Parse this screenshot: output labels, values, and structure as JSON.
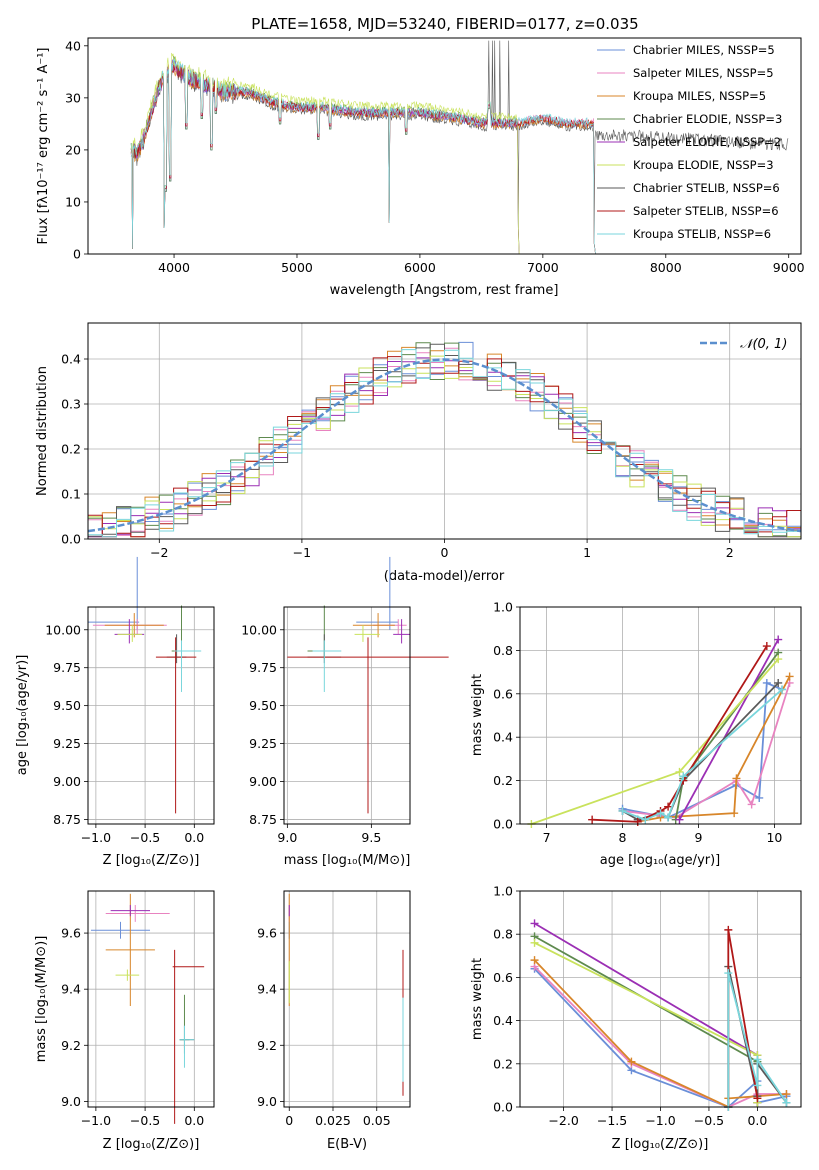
{
  "colors": [
    "#6a8fd8",
    "#e883c0",
    "#d8862a",
    "#5e8a4e",
    "#9b2fb4",
    "#c9e25c",
    "#5a5a5a",
    "#b01818",
    "#79d6dc"
  ],
  "spectrum_panel": {
    "title": "PLATE=1658, MJD=53240, FIBERID=0177, z=0.035",
    "xlabel": "wavelength [Angstrom, rest frame]",
    "ylabel": "Flux [fλ10⁻¹⁷ erg cm⁻² s⁻¹ A⁻¹]",
    "legend": [
      "Chabrier MILES, NSSP=5",
      "Salpeter MILES, NSSP=5",
      "Kroupa MILES, NSSP=5",
      "Chabrier ELODIE, NSSP=3",
      "Salpeter ELODIE, NSSP=2",
      "Kroupa ELODIE, NSSP=3",
      "Chabrier STELIB, NSSP=6",
      "Salpeter STELIB, NSSP=6",
      "Kroupa STELIB, NSSP=6"
    ]
  },
  "hist_panel": {
    "xlabel": "(data-model)/error",
    "ylabel": "Normed distribution",
    "legend": "𝒩(0, 1)"
  },
  "age_z_panel": {
    "xlabel": "Z [log₁₀(Z/Z⊙)]",
    "ylabel": "age  [log₁₀(age/yr)]"
  },
  "age_mass_panel": {
    "xlabel": "mass [log₁₀(M/M⊙)]"
  },
  "weight_age_panel": {
    "xlabel": "age  [log₁₀(age/yr)]",
    "ylabel": "mass weight"
  },
  "mass_z_panel": {
    "xlabel": "Z [log₁₀(Z/Z⊙)]",
    "ylabel": "mass [log₁₀(M/M⊙)]"
  },
  "mass_ebv_panel": {
    "xlabel": "E(B-V)"
  },
  "weight_z_panel": {
    "xlabel": "Z [log₁₀(Z/Z⊙)]",
    "ylabel": "mass weight"
  },
  "chart_data": [
    {
      "type": "line",
      "id": "spectrum",
      "xlim": [
        3300,
        9100
      ],
      "ylim": [
        0,
        41.5
      ],
      "xticks": [
        4000,
        5000,
        6000,
        7000,
        8000,
        9000
      ],
      "yticks": [
        0,
        10,
        20,
        30,
        40
      ],
      "grid": false,
      "legend_position": "top-right",
      "continuum": [
        [
          3650,
          20
        ],
        [
          3700,
          19
        ],
        [
          3750,
          22
        ],
        [
          3800,
          26
        ],
        [
          3850,
          30
        ],
        [
          3900,
          33
        ],
        [
          3950,
          35
        ],
        [
          4000,
          36
        ],
        [
          4100,
          34
        ],
        [
          4200,
          33
        ],
        [
          4400,
          31
        ],
        [
          4600,
          31
        ],
        [
          4800,
          29
        ],
        [
          5000,
          28
        ],
        [
          5200,
          28
        ],
        [
          5500,
          27
        ],
        [
          5800,
          27
        ],
        [
          6000,
          27
        ],
        [
          6300,
          26
        ],
        [
          6500,
          25
        ],
        [
          6800,
          25
        ],
        [
          7000,
          26
        ],
        [
          7200,
          25
        ],
        [
          7500,
          25
        ]
      ],
      "absorption_lines": [
        [
          3934,
          12
        ],
        [
          3969,
          14
        ],
        [
          4101,
          24
        ],
        [
          4226,
          26
        ],
        [
          4304,
          20
        ],
        [
          4340,
          27
        ],
        [
          4861,
          25
        ],
        [
          5175,
          22
        ],
        [
          5270,
          24
        ],
        [
          5890,
          23
        ],
        [
          6563,
          28
        ]
      ],
      "drop_to_zero": [
        [
          3660,
          1
        ],
        [
          3920,
          5
        ],
        [
          5750,
          6
        ],
        [
          6800,
          5
        ],
        [
          7420,
          2
        ]
      ],
      "spikes": [
        [
          6560,
          41
        ],
        [
          6590,
          41
        ],
        [
          6610,
          41
        ],
        [
          6650,
          41
        ],
        [
          6720,
          41
        ]
      ],
      "series_offsets": [
        0,
        0.3,
        -0.2,
        0.6,
        0.2,
        1.5,
        -0.6,
        0.1,
        0.4
      ],
      "series_xmax": [
        7420,
        7420,
        7420,
        6800,
        6800,
        6800,
        9000,
        7420,
        7420
      ]
    },
    {
      "type": "histogram",
      "id": "residuals",
      "xlim": [
        -2.5,
        2.5
      ],
      "ylim": [
        0,
        0.48
      ],
      "xticks": [
        -2,
        -1,
        0,
        1,
        2
      ],
      "yticks": [
        0.0,
        0.1,
        0.2,
        0.3,
        0.4
      ],
      "grid": true,
      "legend_position": "top-right",
      "bin_width": 0.1,
      "reference_curve": "normal(0,1)"
    },
    {
      "type": "scatter",
      "id": "age_vs_Z",
      "xlim": [
        -1.08,
        0.2
      ],
      "ylim": [
        8.72,
        10.15
      ],
      "xticks": [
        -1.0,
        -0.5,
        0.0
      ],
      "yticks": [
        8.75,
        9.0,
        9.25,
        9.5,
        9.75,
        10.0
      ],
      "points": [
        [
          -0.58,
          10.05,
          0.5,
          0.02,
          0.05,
          0.43
        ],
        [
          -0.58,
          10.03,
          0.45,
          0.3,
          0.06,
          0.04
        ],
        [
          -0.61,
          10.03,
          0.3,
          0.3,
          0.08,
          0.08
        ],
        [
          -0.13,
          9.86,
          0.1,
          0.1,
          0.05,
          0.3
        ],
        [
          -0.66,
          9.97,
          0.15,
          0.15,
          0.06,
          0.1
        ],
        [
          -0.63,
          9.97,
          0.15,
          0.1,
          0.05,
          0.06
        ],
        [
          -0.18,
          9.82,
          0.1,
          0.1,
          0.04,
          0.15
        ],
        [
          -0.19,
          9.82,
          0.2,
          0.21,
          1.03,
          0.13
        ],
        [
          -0.13,
          9.86,
          0.07,
          0.2,
          0.27,
          0.07
        ]
      ]
    },
    {
      "type": "scatter",
      "id": "age_vs_mass",
      "xlim": [
        8.98,
        9.73
      ],
      "ylim": [
        8.72,
        10.15
      ],
      "xticks": [
        9.0,
        9.5
      ],
      "yticks": [
        8.75,
        9.0,
        9.25,
        9.5,
        9.75,
        10.0
      ],
      "points": [
        [
          9.61,
          10.05,
          0.2,
          0.05,
          0.05,
          0.43
        ],
        [
          9.66,
          10.03,
          0.15,
          0.05,
          0.06,
          0.04
        ],
        [
          9.54,
          10.03,
          0.15,
          0.1,
          0.08,
          0.08
        ],
        [
          9.22,
          9.86,
          0.1,
          0.1,
          0.05,
          0.3
        ],
        [
          9.68,
          9.97,
          0.05,
          0.05,
          0.06,
          0.1
        ],
        [
          9.45,
          9.97,
          0.05,
          0.1,
          0.05,
          0.06
        ],
        [
          9.22,
          9.82,
          0.1,
          0.1,
          0.04,
          0.15
        ],
        [
          9.48,
          9.82,
          0.48,
          0.48,
          1.03,
          0.13
        ],
        [
          9.22,
          9.86,
          0.07,
          0.1,
          0.27,
          0.07
        ]
      ]
    },
    {
      "type": "line",
      "id": "weight_vs_age",
      "xlim": [
        6.65,
        10.35
      ],
      "ylim": [
        0.0,
        1.0
      ],
      "xticks": [
        7,
        8,
        9,
        10
      ],
      "yticks": [
        0.0,
        0.2,
        0.4,
        0.6,
        0.8,
        1.0
      ],
      "grid": true,
      "series": [
        {
          "x": [
            8.0,
            8.6,
            9.5,
            9.8,
            9.9,
            10.1
          ],
          "y": [
            0.07,
            0.03,
            0.18,
            0.12,
            0.65,
            0.62
          ]
        },
        {
          "x": [
            8.0,
            8.7,
            9.5,
            9.7,
            10.2
          ],
          "y": [
            0.06,
            0.03,
            0.2,
            0.09,
            0.65
          ]
        },
        {
          "x": [
            8.2,
            8.5,
            9.47,
            9.5,
            10.2
          ],
          "y": [
            0.01,
            0.03,
            0.05,
            0.21,
            0.68
          ]
        },
        {
          "x": [
            8.7,
            8.8,
            10.05
          ],
          "y": [
            0.02,
            0.21,
            0.79
          ]
        },
        {
          "x": [
            8.75,
            10.05
          ],
          "y": [
            0.02,
            0.85
          ]
        },
        {
          "x": [
            6.8,
            8.75,
            10.05
          ],
          "y": [
            0.0,
            0.24,
            0.76
          ]
        },
        {
          "x": [
            8.0,
            8.2,
            8.5,
            8.6,
            8.8,
            10.05
          ],
          "y": [
            0.06,
            0.02,
            0.05,
            0.03,
            0.2,
            0.65
          ]
        },
        {
          "x": [
            7.6,
            8.2,
            8.5,
            8.6,
            8.8,
            9.9
          ],
          "y": [
            0.02,
            0.01,
            0.06,
            0.08,
            0.2,
            0.82
          ]
        },
        {
          "x": [
            8.0,
            8.3,
            8.5,
            8.6,
            8.8,
            10.1
          ],
          "y": [
            0.06,
            0.02,
            0.05,
            0.03,
            0.22,
            0.62
          ]
        }
      ]
    },
    {
      "type": "scatter",
      "id": "mass_vs_Z",
      "xlim": [
        -1.08,
        0.2
      ],
      "ylim": [
        8.98,
        9.75
      ],
      "xticks": [
        -1.0,
        -0.5,
        0.0
      ],
      "yticks": [
        9.0,
        9.2,
        9.4,
        9.6
      ],
      "points": [
        [
          -0.75,
          9.61,
          0.3,
          0.3,
          0.03,
          0.03
        ],
        [
          -0.6,
          9.67,
          0.3,
          0.35,
          0.03,
          0.03
        ],
        [
          -0.65,
          9.54,
          0.25,
          0.25,
          0.2,
          0.2
        ],
        [
          -0.1,
          9.22,
          0.05,
          0.05,
          0.03,
          0.16
        ],
        [
          -0.65,
          9.68,
          0.2,
          0.2,
          0.02,
          0.02
        ],
        [
          -0.68,
          9.45,
          0.12,
          0.12,
          0.02,
          0.02
        ],
        [
          -0.1,
          9.22,
          0.05,
          0.1,
          0.05,
          0.05
        ],
        [
          -0.2,
          9.48,
          0.02,
          0.3,
          0.56,
          0.06
        ],
        [
          -0.1,
          9.22,
          0.05,
          0.1,
          0.1,
          0.05
        ]
      ]
    },
    {
      "type": "scatter",
      "id": "mass_vs_EBV",
      "xlim": [
        -0.003,
        0.069
      ],
      "ylim": [
        8.98,
        9.75
      ],
      "xticks": [
        0.0,
        0.025,
        0.05
      ],
      "yticks": [
        9.0,
        9.2,
        9.4,
        9.6
      ],
      "points": [
        [
          0.0,
          9.61,
          0.0,
          0.0,
          0.03,
          0.03
        ],
        [
          0.0,
          9.67,
          0.0,
          0.0,
          0.03,
          0.03
        ],
        [
          0.0,
          9.54,
          0.0,
          0.0,
          0.2,
          0.2
        ],
        [
          0.065,
          9.22,
          0.0,
          0.0,
          0.16,
          0.16
        ],
        [
          0.0,
          9.68,
          0.0,
          0.0,
          0.02,
          0.02
        ],
        [
          0.0,
          9.45,
          0.0,
          0.0,
          0.1,
          0.05
        ],
        [
          0.065,
          9.22,
          0.0,
          0.0,
          0.05,
          0.05
        ],
        [
          0.065,
          9.48,
          0.0,
          0.0,
          0.46,
          0.06
        ],
        [
          0.065,
          9.22,
          0.0,
          0.0,
          0.15,
          0.15
        ]
      ]
    },
    {
      "type": "line",
      "id": "weight_vs_Z",
      "xlim": [
        -2.45,
        0.45
      ],
      "ylim": [
        0.0,
        1.0
      ],
      "xticks": [
        -2.0,
        -1.5,
        -1.0,
        -0.5,
        0.0
      ],
      "yticks": [
        0.0,
        0.2,
        0.4,
        0.6,
        0.8,
        1.0
      ],
      "grid": true,
      "series": [
        {
          "x": [
            -2.3,
            -1.3,
            -0.3,
            0.0,
            0.0,
            0.3
          ],
          "y": [
            0.64,
            0.17,
            0.0,
            0.12,
            0.02,
            0.05
          ]
        },
        {
          "x": [
            -2.3,
            -1.3,
            -0.3,
            0.0,
            0.3
          ],
          "y": [
            0.65,
            0.2,
            0.0,
            0.06,
            0.06
          ]
        },
        {
          "x": [
            -2.3,
            -1.3,
            -0.3,
            -0.3,
            0.0,
            0.3
          ],
          "y": [
            0.68,
            0.21,
            0.0,
            0.04,
            0.05,
            0.06
          ]
        },
        {
          "x": [
            -2.3,
            0.0,
            0.0
          ],
          "y": [
            0.79,
            0.21,
            0.02
          ]
        },
        {
          "x": [
            -2.3,
            0.0,
            0.0
          ],
          "y": [
            0.85,
            0.24,
            0.02
          ]
        },
        {
          "x": [
            -2.3,
            0.0,
            0.0
          ],
          "y": [
            0.76,
            0.24,
            0.02
          ]
        },
        {
          "x": [
            -0.3,
            -0.3,
            0.0,
            0.0,
            0.3
          ],
          "y": [
            0.0,
            0.65,
            0.05,
            0.2,
            0.02
          ]
        },
        {
          "x": [
            -0.3,
            -0.3,
            0.0
          ],
          "y": [
            0.0,
            0.82,
            0.04
          ]
        },
        {
          "x": [
            -0.3,
            -0.3,
            0.0,
            0.0,
            0.3
          ],
          "y": [
            0.0,
            0.62,
            0.1,
            0.22,
            0.02
          ]
        }
      ]
    }
  ]
}
